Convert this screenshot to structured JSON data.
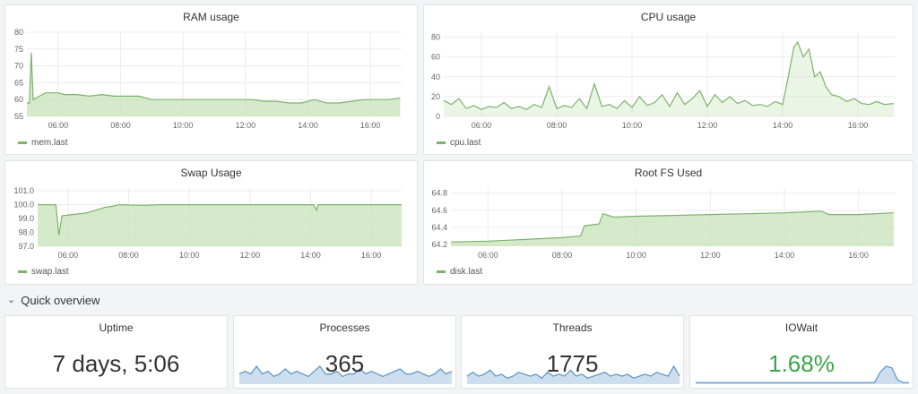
{
  "colors": {
    "series_line": "#7eb26d",
    "series_fill": "#c7e3b8",
    "sparkline": "#5794c9",
    "sparkline_fill": "#b8d0e8",
    "ok_value": "#3aa548"
  },
  "row_header": {
    "label": "Quick overview",
    "icon": "chevron-down-icon"
  },
  "graphs": [
    {
      "id": "ram",
      "title": "RAM usage",
      "legend": "mem.last",
      "chart_data": {
        "type": "area",
        "title": "RAM usage",
        "x_ticks": [
          "06:00",
          "08:00",
          "10:00",
          "12:00",
          "14:00",
          "16:00"
        ],
        "y_ticks": [
          "55",
          "60",
          "65",
          "70",
          "75",
          "80"
        ],
        "ylim": [
          55,
          80
        ],
        "series": [
          {
            "name": "mem.last",
            "points": [
              [
                0,
                59
              ],
              [
                0.08,
                59
              ],
              [
                0.14,
                74
              ],
              [
                0.2,
                60
              ],
              [
                0.4,
                61
              ],
              [
                0.6,
                62
              ],
              [
                0.8,
                62
              ],
              [
                1,
                62
              ],
              [
                1.2,
                61.5
              ],
              [
                1.6,
                61.5
              ],
              [
                2,
                61
              ],
              [
                2.4,
                61.5
              ],
              [
                2.8,
                61
              ],
              [
                3.2,
                61
              ],
              [
                3.6,
                61
              ],
              [
                4,
                60
              ],
              [
                4.4,
                60
              ],
              [
                4.8,
                60
              ],
              [
                5.2,
                60
              ],
              [
                5.6,
                60
              ],
              [
                6,
                60
              ],
              [
                6.4,
                60
              ],
              [
                6.8,
                60
              ],
              [
                7.2,
                60
              ],
              [
                7.6,
                59.5
              ],
              [
                8,
                59.5
              ],
              [
                8.4,
                59
              ],
              [
                8.8,
                59
              ],
              [
                9.2,
                60
              ],
              [
                9.6,
                59
              ],
              [
                10,
                59
              ],
              [
                10.4,
                59.5
              ],
              [
                10.8,
                60
              ],
              [
                11.2,
                60
              ],
              [
                11.6,
                60
              ],
              [
                11.95,
                60.5
              ]
            ]
          }
        ],
        "grid": true
      }
    },
    {
      "id": "cpu",
      "title": "CPU usage",
      "legend": "cpu.last",
      "chart_data": {
        "type": "line",
        "title": "CPU usage",
        "x_ticks": [
          "06:00",
          "08:00",
          "10:00",
          "12:00",
          "14:00",
          "16:00"
        ],
        "y_ticks": [
          "0",
          "20",
          "40",
          "60",
          "80"
        ],
        "ylim": [
          0,
          85
        ],
        "series": [
          {
            "name": "cpu.last",
            "points": [
              [
                0,
                16
              ],
              [
                0.2,
                12
              ],
              [
                0.4,
                18
              ],
              [
                0.6,
                8
              ],
              [
                0.8,
                11
              ],
              [
                1,
                7
              ],
              [
                1.2,
                10
              ],
              [
                1.4,
                9
              ],
              [
                1.6,
                14
              ],
              [
                1.8,
                8
              ],
              [
                2,
                10
              ],
              [
                2.2,
                7
              ],
              [
                2.4,
                12
              ],
              [
                2.6,
                9
              ],
              [
                2.8,
                30
              ],
              [
                3,
                8
              ],
              [
                3.2,
                11
              ],
              [
                3.4,
                9
              ],
              [
                3.6,
                18
              ],
              [
                3.8,
                8
              ],
              [
                4,
                33
              ],
              [
                4.2,
                10
              ],
              [
                4.4,
                12
              ],
              [
                4.6,
                8
              ],
              [
                4.8,
                16
              ],
              [
                5,
                9
              ],
              [
                5.2,
                20
              ],
              [
                5.4,
                11
              ],
              [
                5.6,
                14
              ],
              [
                5.8,
                22
              ],
              [
                6,
                10
              ],
              [
                6.2,
                24
              ],
              [
                6.4,
                12
              ],
              [
                6.6,
                18
              ],
              [
                6.8,
                26
              ],
              [
                7,
                10
              ],
              [
                7.2,
                22
              ],
              [
                7.4,
                14
              ],
              [
                7.6,
                20
              ],
              [
                7.8,
                13
              ],
              [
                8,
                16
              ],
              [
                8.2,
                11
              ],
              [
                8.4,
                12
              ],
              [
                8.6,
                10
              ],
              [
                8.8,
                15
              ],
              [
                9,
                12
              ],
              [
                9.15,
                40
              ],
              [
                9.3,
                70
              ],
              [
                9.4,
                75
              ],
              [
                9.55,
                60
              ],
              [
                9.7,
                68
              ],
              [
                9.85,
                40
              ],
              [
                10,
                45
              ],
              [
                10.15,
                30
              ],
              [
                10.3,
                22
              ],
              [
                10.5,
                20
              ],
              [
                10.7,
                15
              ],
              [
                10.9,
                18
              ],
              [
                11.1,
                13
              ],
              [
                11.3,
                12
              ],
              [
                11.5,
                15
              ],
              [
                11.7,
                12
              ],
              [
                11.95,
                13
              ]
            ]
          }
        ],
        "grid": true
      }
    },
    {
      "id": "swap",
      "title": "Swap Usage",
      "legend": "swap.last",
      "chart_data": {
        "type": "area",
        "title": "Swap Usage",
        "x_ticks": [
          "06:00",
          "08:00",
          "10:00",
          "12:00",
          "14:00",
          "16:00"
        ],
        "y_ticks": [
          "97.0",
          "98.0",
          "99.0",
          "100.0",
          "101.0"
        ],
        "ylim": [
          97,
          101.2
        ],
        "series": [
          {
            "name": "swap.last",
            "points": [
              [
                0,
                100
              ],
              [
                0.6,
                100
              ],
              [
                0.7,
                97.8
              ],
              [
                0.8,
                99.2
              ],
              [
                1.2,
                99.3
              ],
              [
                1.6,
                99.4
              ],
              [
                1.9,
                99.6
              ],
              [
                2.2,
                99.8
              ],
              [
                2.5,
                99.9
              ],
              [
                2.7,
                100
              ],
              [
                3.5,
                99.95
              ],
              [
                4,
                100
              ],
              [
                6,
                100
              ],
              [
                9.1,
                100
              ],
              [
                9.2,
                99.6
              ],
              [
                9.25,
                100
              ],
              [
                12,
                100
              ]
            ]
          }
        ],
        "grid": true
      }
    },
    {
      "id": "disk",
      "title": "Root FS Used",
      "legend": "disk.last",
      "chart_data": {
        "type": "area",
        "title": "Root FS Used",
        "x_ticks": [
          "06:00",
          "08:00",
          "10:00",
          "12:00",
          "14:00",
          "16:00"
        ],
        "y_ticks": [
          "64.2",
          "64.4",
          "64.6",
          "64.8"
        ],
        "ylim": [
          64.18,
          64.86
        ],
        "series": [
          {
            "name": "disk.last",
            "points": [
              [
                0,
                64.23
              ],
              [
                1,
                64.24
              ],
              [
                1.5,
                64.25
              ],
              [
                2,
                64.26
              ],
              [
                3,
                64.28
              ],
              [
                3.5,
                64.3
              ],
              [
                3.6,
                64.42
              ],
              [
                4,
                64.44
              ],
              [
                4.1,
                64.56
              ],
              [
                4.4,
                64.52
              ],
              [
                5,
                64.53
              ],
              [
                6,
                64.54
              ],
              [
                7,
                64.55
              ],
              [
                8,
                64.56
              ],
              [
                9,
                64.57
              ],
              [
                10,
                64.59
              ],
              [
                10.2,
                64.55
              ],
              [
                11,
                64.55
              ],
              [
                11.95,
                64.57
              ]
            ]
          }
        ],
        "grid": true
      }
    }
  ],
  "stats": [
    {
      "id": "uptime",
      "title": "Uptime",
      "value": "7 days, 5:06",
      "sparkline": null,
      "value_color": "#333333"
    },
    {
      "id": "processes",
      "title": "Processes",
      "value": "365",
      "value_color": "#333333",
      "sparkline": [
        4,
        5,
        4,
        7,
        4,
        5,
        3,
        4,
        6,
        4,
        5,
        4,
        3,
        5,
        7,
        4,
        4,
        5,
        3,
        4,
        4,
        6,
        4,
        5,
        4,
        3,
        4,
        5,
        6,
        4,
        4,
        5,
        4,
        3,
        4,
        6,
        4,
        5
      ]
    },
    {
      "id": "threads",
      "title": "Threads",
      "value": "1775",
      "value_color": "#333333",
      "sparkline": [
        4,
        6,
        4,
        5,
        7,
        4,
        5,
        3,
        4,
        6,
        5,
        4,
        5,
        3,
        6,
        4,
        5,
        4,
        7,
        4,
        5,
        3,
        4,
        5,
        6,
        4,
        5,
        4,
        5,
        3,
        4,
        5,
        4,
        6,
        5,
        4,
        9,
        4
      ]
    },
    {
      "id": "iowait",
      "title": "IOWait",
      "value": "1.68%",
      "value_color": "#3aa548",
      "sparkline": [
        1,
        1,
        1,
        1,
        1,
        1,
        1,
        1,
        1,
        1,
        1,
        1,
        1,
        1,
        1,
        1,
        1,
        1,
        1,
        1,
        1,
        1,
        1,
        1,
        1,
        1,
        1,
        1,
        1,
        1,
        1,
        1,
        8,
        12,
        11,
        3,
        1,
        1
      ]
    }
  ]
}
